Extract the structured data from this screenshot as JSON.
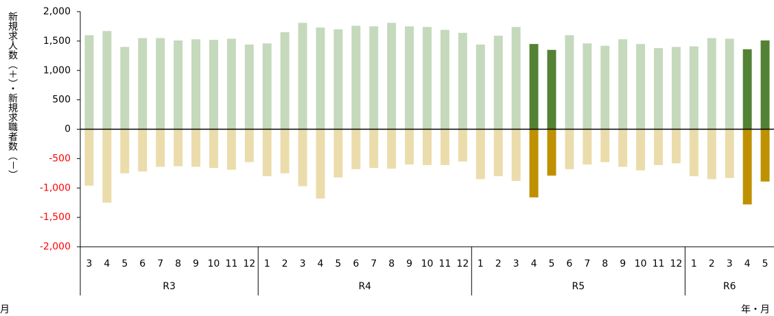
{
  "chart_data": {
    "type": "bar",
    "y_label": "新規求人数（＋）・新規求職者数（－）",
    "x_label": "年・月",
    "x_label_left": "月",
    "groups": [
      {
        "name": "R3",
        "categories": [
          "3",
          "4",
          "5",
          "6",
          "7",
          "8",
          "9",
          "10",
          "11",
          "12"
        ]
      },
      {
        "name": "R4",
        "categories": [
          "1",
          "2",
          "3",
          "4",
          "5",
          "6",
          "7",
          "8",
          "9",
          "10",
          "11",
          "12"
        ]
      },
      {
        "name": "R5",
        "categories": [
          "1",
          "2",
          "3",
          "4",
          "5",
          "6",
          "7",
          "8",
          "9",
          "10",
          "11",
          "12"
        ]
      },
      {
        "name": "R6",
        "categories": [
          "1",
          "2",
          "3",
          "4",
          "5"
        ]
      }
    ],
    "series": [
      {
        "values": [
          1600,
          1670,
          1400,
          1550,
          1550,
          1510,
          1530,
          1520,
          1540,
          1440,
          1460,
          1650,
          1810,
          1730,
          1700,
          1760,
          1750,
          1810,
          1750,
          1740,
          1690,
          1640,
          1440,
          1590,
          1740,
          1450,
          1350,
          1600,
          1460,
          1420,
          1530,
          1450,
          1380,
          1400,
          1410,
          1550,
          1540,
          1360,
          1510
        ],
        "colors": [
          "#c5d9bd",
          "#c5d9bd",
          "#c5d9bd",
          "#c5d9bd",
          "#c5d9bd",
          "#c5d9bd",
          "#c5d9bd",
          "#c5d9bd",
          "#c5d9bd",
          "#c5d9bd",
          "#c5d9bd",
          "#c5d9bd",
          "#c5d9bd",
          "#c5d9bd",
          "#c5d9bd",
          "#c5d9bd",
          "#c5d9bd",
          "#c5d9bd",
          "#c5d9bd",
          "#c5d9bd",
          "#c5d9bd",
          "#c5d9bd",
          "#c5d9bd",
          "#c5d9bd",
          "#c5d9bd",
          "#548235",
          "#548235",
          "#c5d9bd",
          "#c5d9bd",
          "#c5d9bd",
          "#c5d9bd",
          "#c5d9bd",
          "#c5d9bd",
          "#c5d9bd",
          "#c5d9bd",
          "#c5d9bd",
          "#c5d9bd",
          "#548235",
          "#548235"
        ]
      },
      {
        "values": [
          -960,
          -1250,
          -750,
          -720,
          -640,
          -630,
          -640,
          -660,
          -690,
          -560,
          -800,
          -750,
          -970,
          -1180,
          -820,
          -680,
          -660,
          -670,
          -600,
          -610,
          -610,
          -550,
          -850,
          -800,
          -880,
          -1160,
          -790,
          -680,
          -600,
          -560,
          -640,
          -700,
          -610,
          -580,
          -800,
          -850,
          -830,
          -1280,
          -890
        ],
        "colors": [
          "#ebdcab",
          "#ebdcab",
          "#ebdcab",
          "#ebdcab",
          "#ebdcab",
          "#ebdcab",
          "#ebdcab",
          "#ebdcab",
          "#ebdcab",
          "#ebdcab",
          "#ebdcab",
          "#ebdcab",
          "#ebdcab",
          "#ebdcab",
          "#ebdcab",
          "#ebdcab",
          "#ebdcab",
          "#ebdcab",
          "#ebdcab",
          "#ebdcab",
          "#ebdcab",
          "#ebdcab",
          "#ebdcab",
          "#ebdcab",
          "#ebdcab",
          "#bf9000",
          "#bf9000",
          "#ebdcab",
          "#ebdcab",
          "#ebdcab",
          "#ebdcab",
          "#ebdcab",
          "#ebdcab",
          "#ebdcab",
          "#ebdcab",
          "#ebdcab",
          "#ebdcab",
          "#bf9000",
          "#bf9000"
        ]
      }
    ],
    "ylim": [
      -2000,
      2000
    ],
    "yticks": [
      {
        "value": -2000,
        "label": "-2,000"
      },
      {
        "value": -1500,
        "label": "-1,500"
      },
      {
        "value": -1000,
        "label": "-1,000"
      },
      -500,
      0,
      500,
      {
        "value": 1000,
        "label": "1,000"
      },
      {
        "value": 1500,
        "label": "1,500"
      },
      {
        "value": 2000,
        "label": "2,000"
      }
    ]
  }
}
